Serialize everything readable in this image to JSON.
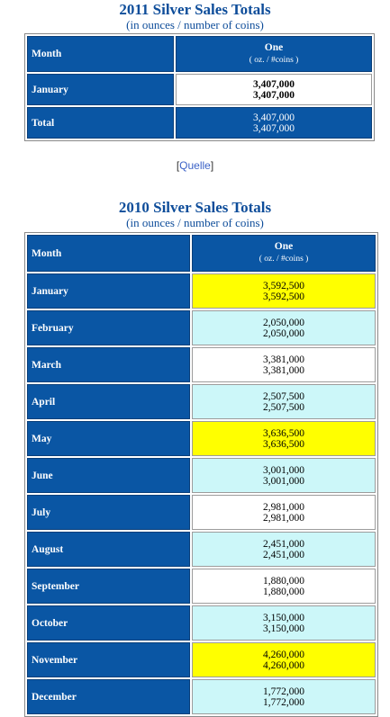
{
  "table2011": {
    "title": "2011 Silver Sales Totals",
    "subtitle": "(in ounces / number of coins)",
    "header": {
      "month": "Month",
      "one": "One",
      "unit": "( oz. / #coins )"
    },
    "rows": [
      {
        "month": "January",
        "oz": "3,407,000",
        "coins": "3,407,000"
      }
    ],
    "total": {
      "label": "Total",
      "oz": "3,407,000",
      "coins": "3,407,000"
    }
  },
  "source": {
    "open": "[",
    "link": "Quelle",
    "close": "]"
  },
  "table2010": {
    "title": "2010 Silver Sales Totals",
    "subtitle": "(in ounces / number of coins)",
    "header": {
      "month": "Month",
      "one": "One",
      "unit": "( oz. / #coins )"
    },
    "rows": [
      {
        "month": "January",
        "oz": "3,592,500",
        "coins": "3,592,500",
        "highlight": "yellow"
      },
      {
        "month": "February",
        "oz": "2,050,000",
        "coins": "2,050,000",
        "highlight": "cyan"
      },
      {
        "month": "March",
        "oz": "3,381,000",
        "coins": "3,381,000",
        "highlight": "white"
      },
      {
        "month": "April",
        "oz": "2,507,500",
        "coins": "2,507,500",
        "highlight": "cyan"
      },
      {
        "month": "May",
        "oz": "3,636,500",
        "coins": "3,636,500",
        "highlight": "yellow"
      },
      {
        "month": "June",
        "oz": "3,001,000",
        "coins": "3,001,000",
        "highlight": "cyan"
      },
      {
        "month": "July",
        "oz": "2,981,000",
        "coins": "2,981,000",
        "highlight": "white"
      },
      {
        "month": "August",
        "oz": "2,451,000",
        "coins": "2,451,000",
        "highlight": "cyan"
      },
      {
        "month": "September",
        "oz": "1,880,000",
        "coins": "1,880,000",
        "highlight": "white"
      },
      {
        "month": "October",
        "oz": "3,150,000",
        "coins": "3,150,000",
        "highlight": "cyan"
      },
      {
        "month": "November",
        "oz": "4,260,000",
        "coins": "4,260,000",
        "highlight": "yellow"
      },
      {
        "month": "December",
        "oz": "1,772,000",
        "coins": "1,772,000",
        "highlight": "cyan"
      }
    ]
  },
  "colors": {
    "header_blue": "#0a56a4",
    "title_blue": "#0e4d9a",
    "highlight_yellow": "#ffff00",
    "highlight_cyan": "#ccf7f9",
    "highlight_white": "#ffffff"
  }
}
